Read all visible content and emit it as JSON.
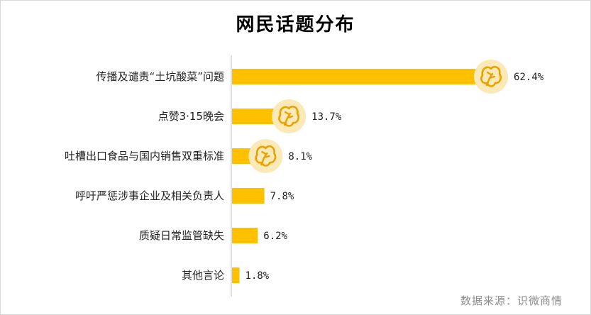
{
  "title": "网民话题分布",
  "source_note": "数据来源：识微商情",
  "colors": {
    "bar": "#FFC000",
    "badge_bg": "#FCE9B8",
    "badge_icon": "#E8A200",
    "axis": "#bfbfbf"
  },
  "chart_data": {
    "type": "bar",
    "orientation": "horizontal",
    "title": "网民话题分布",
    "categories": [
      "传播及谴责“土坑酸菜”问题",
      "点赞3·15晚会",
      "吐槽出口食品与国内销售双重标准",
      "呼吁严惩涉事企业及相关负责人",
      "质疑日常监管缺失",
      "其他言论"
    ],
    "values": [
      62.4,
      13.7,
      8.1,
      7.8,
      6.2,
      1.8
    ],
    "value_labels": [
      "62.4%",
      "13.7%",
      "8.1%",
      "7.8%",
      "6.2%",
      "1.8%"
    ],
    "unit": "%",
    "badged_bars": [
      0,
      1,
      2
    ],
    "badge_icon": "cabbage-icon",
    "xlim": [
      0,
      70
    ],
    "grid": false,
    "legend": "none"
  }
}
